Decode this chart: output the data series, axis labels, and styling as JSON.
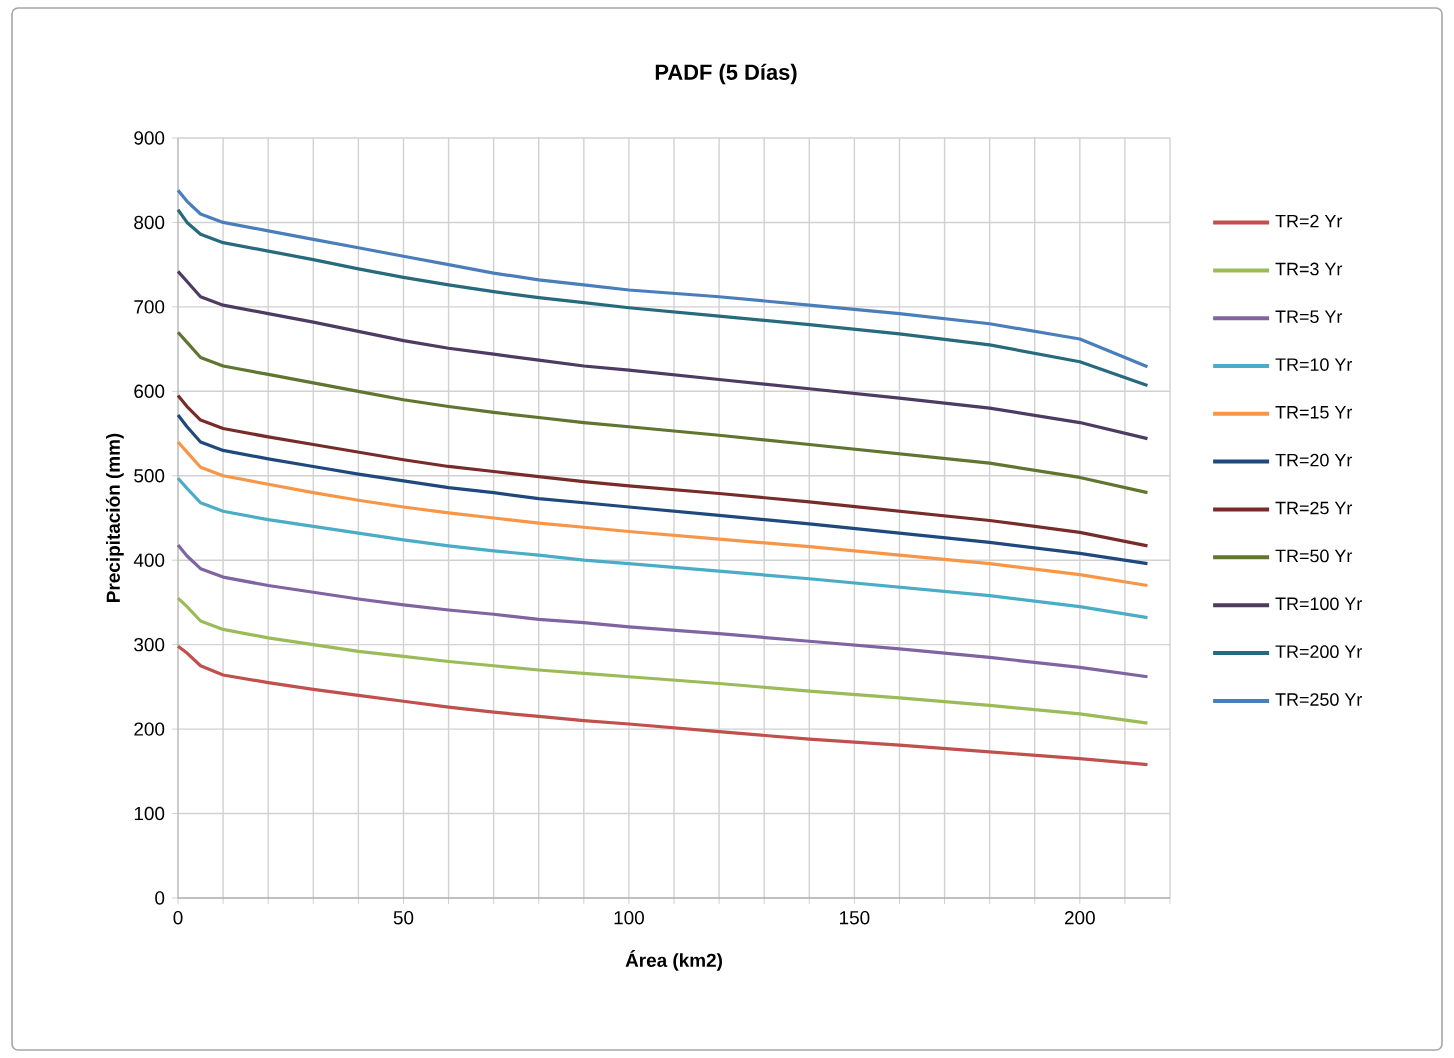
{
  "chart_data": {
    "type": "line",
    "title": "PADF (5 Días)",
    "xlabel": "Área (km2)",
    "ylabel": "Precipitación (mm)",
    "x": [
      0,
      2,
      5,
      10,
      20,
      30,
      40,
      50,
      60,
      70,
      80,
      90,
      100,
      120,
      140,
      160,
      180,
      200,
      215
    ],
    "series": [
      {
        "name": "TR=2 Yr",
        "color": "#c0504d",
        "values": [
          298,
          290,
          275,
          264,
          255,
          247,
          240,
          233,
          226,
          220,
          215,
          210,
          206,
          197,
          188,
          181,
          173,
          165,
          158
        ]
      },
      {
        "name": "TR=3 Yr",
        "color": "#9bbb59",
        "values": [
          355,
          345,
          328,
          318,
          308,
          300,
          292,
          286,
          280,
          275,
          270,
          266,
          262,
          254,
          245,
          237,
          228,
          218,
          207
        ]
      },
      {
        "name": "TR=5 Yr",
        "color": "#8064a2",
        "values": [
          418,
          405,
          390,
          380,
          370,
          362,
          354,
          347,
          341,
          336,
          330,
          326,
          321,
          313,
          304,
          295,
          285,
          273,
          262
        ]
      },
      {
        "name": "TR=10 Yr",
        "color": "#4bacc6",
        "values": [
          497,
          485,
          468,
          458,
          448,
          440,
          432,
          424,
          417,
          411,
          406,
          400,
          396,
          387,
          378,
          368,
          358,
          345,
          332
        ]
      },
      {
        "name": "TR=15 Yr",
        "color": "#f79646",
        "values": [
          540,
          528,
          510,
          500,
          490,
          480,
          471,
          463,
          456,
          450,
          444,
          439,
          434,
          425,
          416,
          406,
          396,
          383,
          370
        ]
      },
      {
        "name": "TR=20 Yr",
        "color": "#1f497d",
        "values": [
          572,
          558,
          540,
          530,
          520,
          511,
          502,
          494,
          486,
          480,
          473,
          468,
          463,
          453,
          443,
          432,
          421,
          408,
          396
        ]
      },
      {
        "name": "TR=25 Yr",
        "color": "#772c2a",
        "values": [
          595,
          582,
          566,
          556,
          546,
          537,
          528,
          519,
          511,
          505,
          499,
          493,
          488,
          479,
          469,
          458,
          447,
          433,
          417
        ]
      },
      {
        "name": "TR=50 Yr",
        "color": "#5f7530",
        "values": [
          670,
          658,
          640,
          630,
          620,
          610,
          600,
          590,
          582,
          575,
          569,
          563,
          558,
          548,
          537,
          526,
          515,
          498,
          480
        ]
      },
      {
        "name": "TR=100 Yr",
        "color": "#4d3b62",
        "values": [
          742,
          730,
          712,
          702,
          692,
          682,
          671,
          660,
          651,
          644,
          637,
          630,
          625,
          614,
          603,
          592,
          580,
          563,
          544
        ]
      },
      {
        "name": "TR=200 Yr",
        "color": "#276a7c",
        "values": [
          815,
          800,
          786,
          776,
          766,
          756,
          745,
          735,
          726,
          718,
          711,
          705,
          699,
          689,
          679,
          668,
          655,
          635,
          607
        ]
      },
      {
        "name": "TR=250 Yr",
        "color": "#4a7ebb",
        "values": [
          838,
          825,
          810,
          800,
          790,
          780,
          770,
          760,
          750,
          740,
          732,
          726,
          720,
          712,
          702,
          692,
          680,
          662,
          629
        ]
      }
    ],
    "xlim": [
      0,
      220
    ],
    "ylim": [
      0,
      900
    ],
    "xticks": [
      0,
      {
        "value": 10,
        "label": null
      },
      {
        "value": 20,
        "label": null
      },
      {
        "value": 30,
        "label": null
      },
      {
        "value": 40,
        "label": null
      },
      50,
      {
        "value": 60,
        "label": null
      },
      {
        "value": 70,
        "label": null
      },
      {
        "value": 80,
        "label": null
      },
      {
        "value": 90,
        "label": null
      },
      100,
      {
        "value": 110,
        "label": null
      },
      {
        "value": 120,
        "label": null
      },
      {
        "value": 130,
        "label": null
      },
      {
        "value": 140,
        "label": null
      },
      150,
      {
        "value": 160,
        "label": null
      },
      {
        "value": 170,
        "label": null
      },
      {
        "value": 180,
        "label": null
      },
      {
        "value": 190,
        "label": null
      },
      200,
      {
        "value": 210,
        "label": null
      },
      {
        "value": 220,
        "label": null
      }
    ],
    "yticks": [
      0,
      100,
      200,
      300,
      400,
      500,
      600,
      700,
      800,
      900
    ],
    "grid": true,
    "legend": "right",
    "marker": "none",
    "line_style": "solid"
  }
}
